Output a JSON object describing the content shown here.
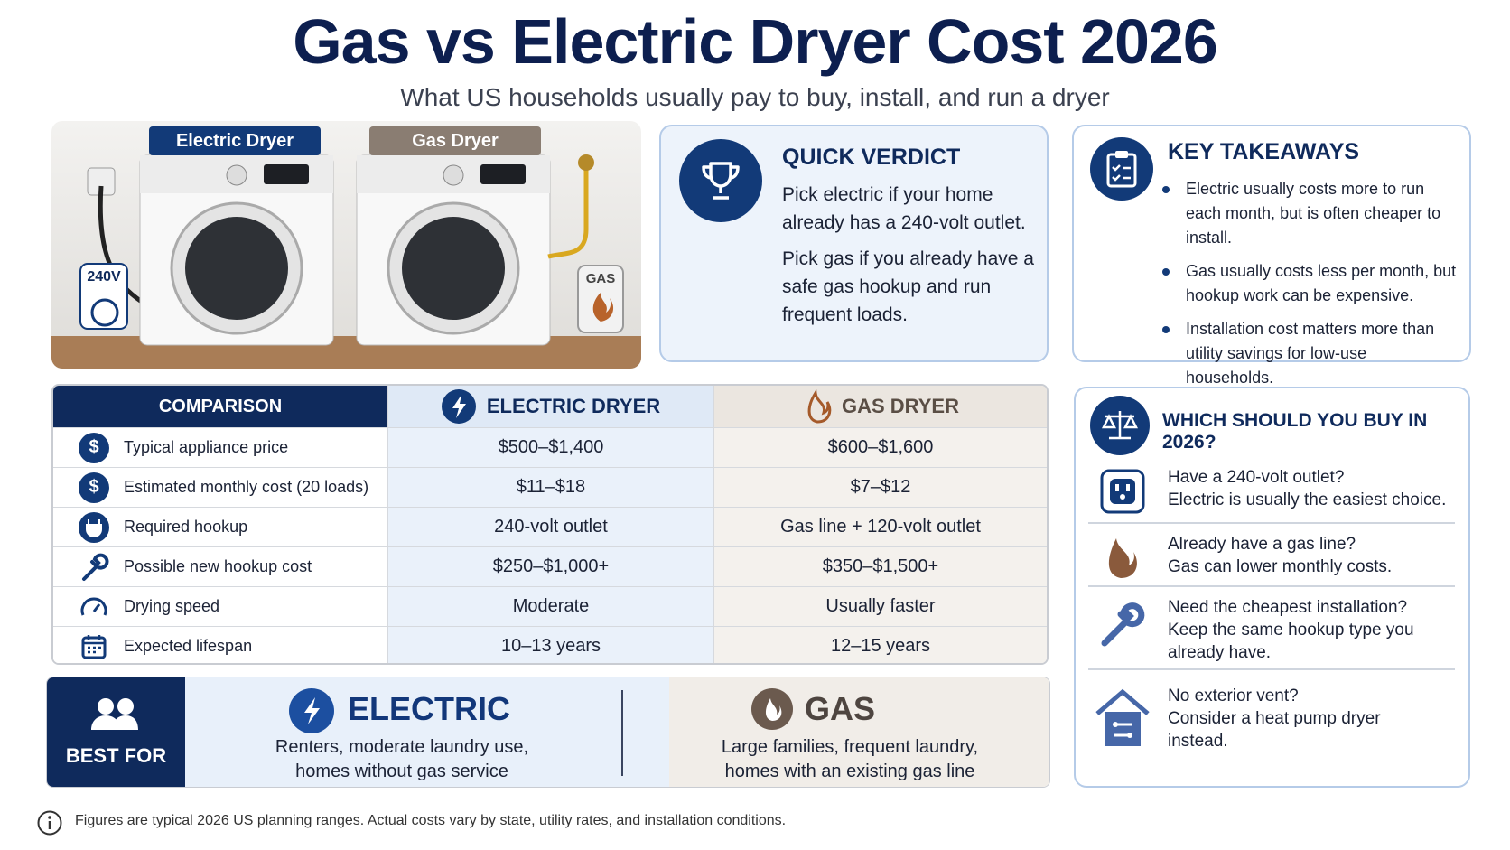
{
  "header": {
    "title": "Gas vs Electric Dryer Cost 2026",
    "subtitle": "What US households usually pay to buy, install, and run a dryer"
  },
  "illustration": {
    "electric_label": "Electric Dryer",
    "gas_label": "Gas Dryer",
    "outlet_label": "240V",
    "gas_badge": "GAS"
  },
  "quick_verdict": {
    "title": "QUICK VERDICT",
    "paragraphs": [
      "Pick electric if your home already has a 240-volt outlet.",
      "Pick gas if you already have a safe gas hookup and run frequent loads."
    ]
  },
  "key_takeaways": {
    "title": "KEY TAKEAWAYS",
    "items": [
      "Electric usually costs more to run each month, but is often cheaper to install.",
      "Gas usually costs less per month, but hookup work can be expensive.",
      "Installation cost matters more than utility savings for low-use households."
    ]
  },
  "comparison": {
    "headers": [
      "COMPARISON",
      "ELECTRIC DRYER",
      "GAS DRYER"
    ],
    "rows": [
      [
        "Typical appliance price",
        "$500–$1,400",
        "$600–$1,600"
      ],
      [
        "Estimated monthly cost (20 loads)",
        "$11–$18",
        "$7–$12"
      ],
      [
        "Required hookup",
        "240-volt outlet",
        "Gas line + 120-volt outlet"
      ],
      [
        "Possible new hookup cost",
        "$250–$1,000+",
        "$350–$1,500+"
      ],
      [
        "Drying speed",
        "Moderate",
        "Usually faster"
      ],
      [
        "Expected lifespan",
        "10–13 years",
        "12–15 years"
      ]
    ]
  },
  "best_for": {
    "label": "BEST FOR",
    "electric": {
      "title": "ELECTRIC",
      "text": "Renters, moderate laundry use, homes without gas service"
    },
    "gas": {
      "title": "GAS",
      "text": "Large families, frequent laundry, homes with an existing gas line"
    }
  },
  "which": {
    "title": "WHICH SHOULD YOU BUY IN 2026?",
    "items": [
      {
        "question": "Have a 240-volt outlet?",
        "answer": "Electric is usually the easiest choice."
      },
      {
        "question": "Already have a gas line?",
        "answer": "Gas can lower monthly costs."
      },
      {
        "question": "Need the cheapest installation?",
        "answer": "Keep the same hookup type you already have."
      },
      {
        "question": "No exterior vent?",
        "answer": "Consider a heat pump dryer instead."
      }
    ]
  },
  "footnote": "Figures are typical 2026 US planning ranges. Actual costs vary by state, utility rates, and installation conditions."
}
